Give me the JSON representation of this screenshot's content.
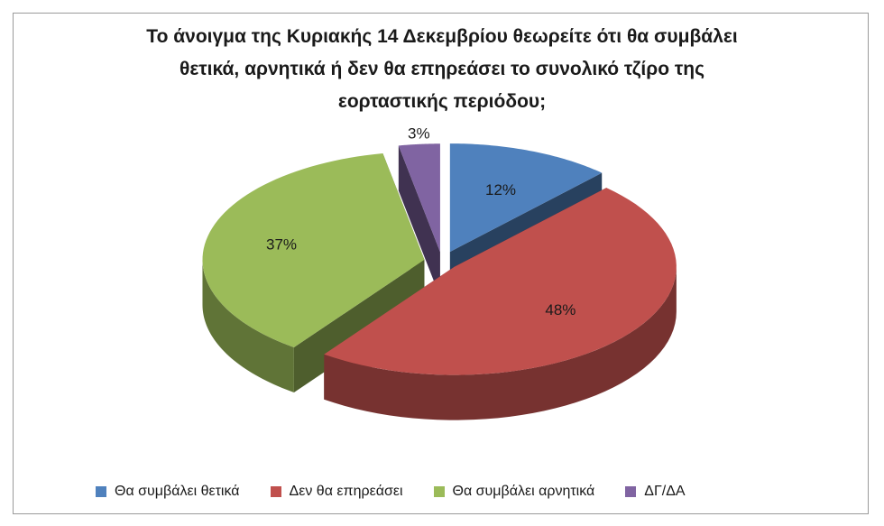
{
  "chart_data": {
    "type": "pie",
    "title_lines": [
      "Το άνοιγμα της Κυριακής 14 Δεκεμβρίου θεωρείτε ότι θα συμβάλει",
      "θετικά, αρνητικά ή δεν θα επηρεάσει το συνολικό τζίρο της",
      "εορταστικής περιόδου;"
    ],
    "slices": [
      {
        "name": "Θα συμβάλει θετικά",
        "value": 12,
        "label": "12%",
        "color": "#4f81bd"
      },
      {
        "name": "Δεν θα επηρεάσει",
        "value": 48,
        "label": "48%",
        "color": "#c0504d"
      },
      {
        "name": "Θα συμβάλει αρνητικά",
        "value": 37,
        "label": "37%",
        "color": "#9bbb59"
      },
      {
        "name": "ΔΓ/ΔΑ",
        "value": 3,
        "label": "3%",
        "color": "#8064a2"
      }
    ],
    "legend_position": "bottom",
    "style": "3d-exploded-pie"
  }
}
